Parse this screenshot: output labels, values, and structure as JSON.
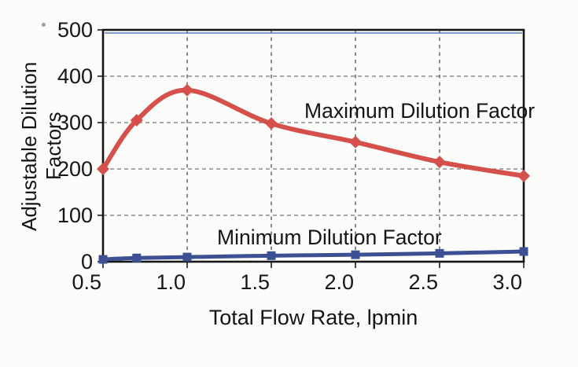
{
  "chart_data": {
    "type": "line",
    "title": "",
    "xlabel": "Total Flow Rate, lpmin",
    "ylabel": "Adjustable Dilution Factors",
    "x": [
      0.5,
      0.7,
      1.0,
      1.5,
      2.0,
      2.5,
      3.0
    ],
    "series": [
      {
        "name": "Maximum Dilution Factor",
        "color": "#d5504b",
        "marker": "diamond",
        "line_width": 6,
        "values": [
          200,
          305,
          370,
          298,
          258,
          215,
          185
        ]
      },
      {
        "name": "Minimum Dilution Factor",
        "color": "#3d5094",
        "marker": "square",
        "line_width": 5,
        "values": [
          5,
          8,
          10,
          13,
          15,
          18,
          22
        ]
      }
    ],
    "xlim": [
      0.5,
      3.0
    ],
    "ylim": [
      0,
      500
    ],
    "x_ticks": [
      0.5,
      1.0,
      1.5,
      2.0,
      2.5,
      3.0
    ],
    "x_tick_labels": [
      "0.5",
      "1.0",
      "1.5",
      "2.0",
      "2.5",
      "3.0"
    ],
    "y_ticks": [
      0,
      100,
      200,
      300,
      400,
      500
    ],
    "y_tick_labels": [
      "0",
      "100",
      "200",
      "300",
      "400",
      "500"
    ],
    "grid": {
      "horizontal": "dashed",
      "vertical": "dashed",
      "color": "#5c5c5c"
    },
    "legend_position": "inline-annotations",
    "annotations": [
      {
        "text": "Maximum Dilution Factor",
        "near": [
          1.7,
          330
        ]
      },
      {
        "text": "Minimum Dilution Factor",
        "near": [
          1.2,
          55
        ]
      }
    ]
  }
}
